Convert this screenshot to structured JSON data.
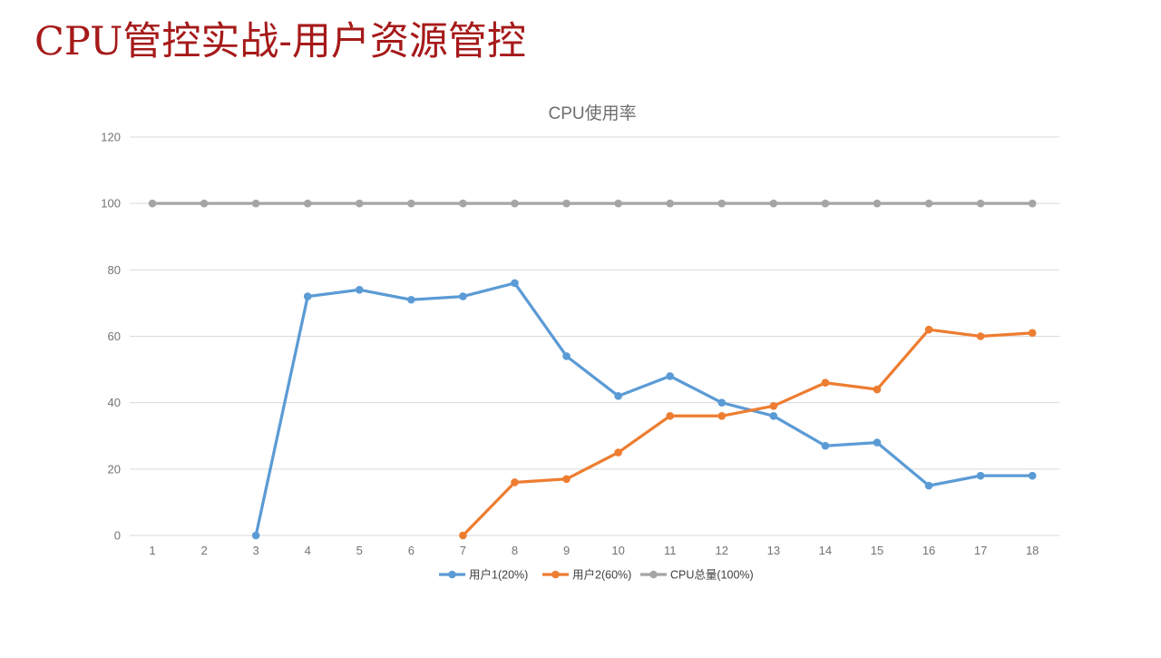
{
  "slide": {
    "title": "CPU管控实战-用户资源管控",
    "title_color": "#A61A1A"
  },
  "chart_data": {
    "type": "line",
    "title": "CPU使用率",
    "xlabel": "",
    "ylabel": "",
    "x": [
      1,
      2,
      3,
      4,
      5,
      6,
      7,
      8,
      9,
      10,
      11,
      12,
      13,
      14,
      15,
      16,
      17,
      18
    ],
    "series": [
      {
        "name": "用户1(20%)",
        "color": "#5B9BD5",
        "values": [
          null,
          null,
          0,
          72,
          74,
          71,
          72,
          76,
          54,
          42,
          48,
          40,
          36,
          27,
          28,
          15,
          18,
          18
        ]
      },
      {
        "name": "用户2(60%)",
        "color": "#ED7D31",
        "values": [
          null,
          null,
          null,
          null,
          null,
          null,
          0,
          16,
          17,
          25,
          36,
          36,
          39,
          46,
          44,
          62,
          60,
          61
        ]
      },
      {
        "name": "CPU总量(100%)",
        "color": "#A5A5A5",
        "values": [
          100,
          100,
          100,
          100,
          100,
          100,
          100,
          100,
          100,
          100,
          100,
          100,
          100,
          100,
          100,
          100,
          100,
          100
        ]
      }
    ],
    "ylim": [
      0,
      120
    ],
    "ytick_step": 20,
    "yticks": [
      0,
      20,
      40,
      60,
      80,
      100,
      120
    ],
    "grid": true,
    "legend_position": "bottom",
    "marker": "circle",
    "colors": {
      "gridline": "#D9D9D9",
      "axis_text": "#737373",
      "chart_title_text": "#6E6E6E",
      "legend_text": "#404040"
    }
  }
}
